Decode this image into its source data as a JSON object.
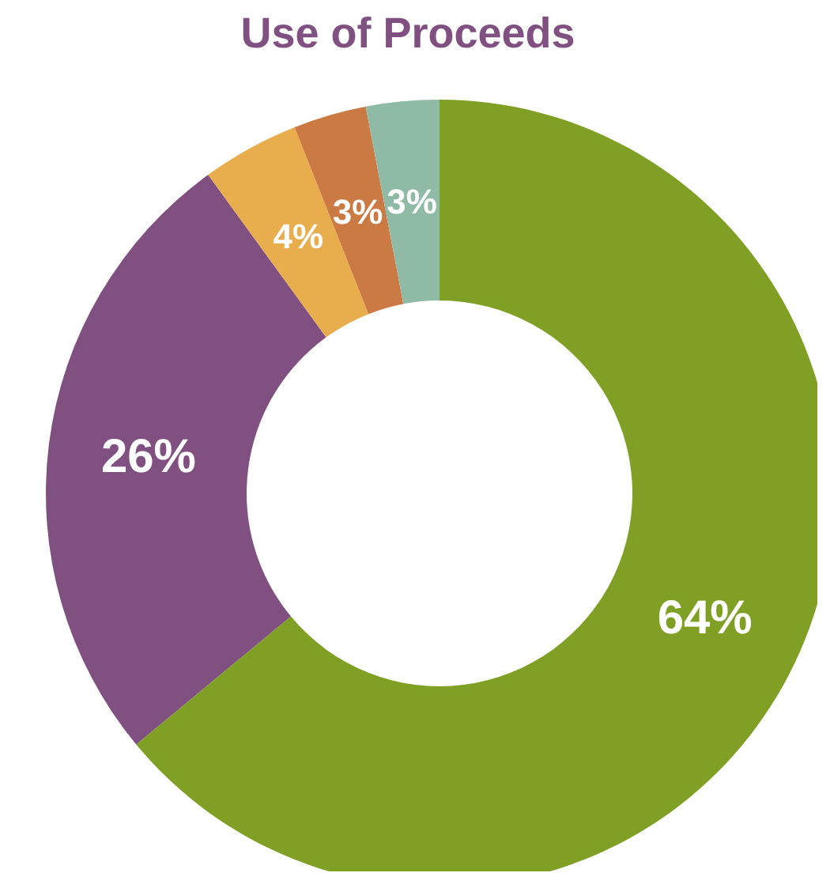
{
  "chart_data": {
    "type": "donut",
    "title": "Use of Proceeds",
    "categories": [
      null,
      null,
      null,
      null,
      null
    ],
    "values": [
      64,
      26,
      4,
      3,
      3
    ],
    "colors": [
      "#80a025",
      "#805080",
      "#e8ad4c",
      "#cc7a44",
      "#8fbaa5"
    ],
    "value_labels": [
      "64%",
      "26%",
      "4%",
      "3%",
      "3%"
    ]
  }
}
